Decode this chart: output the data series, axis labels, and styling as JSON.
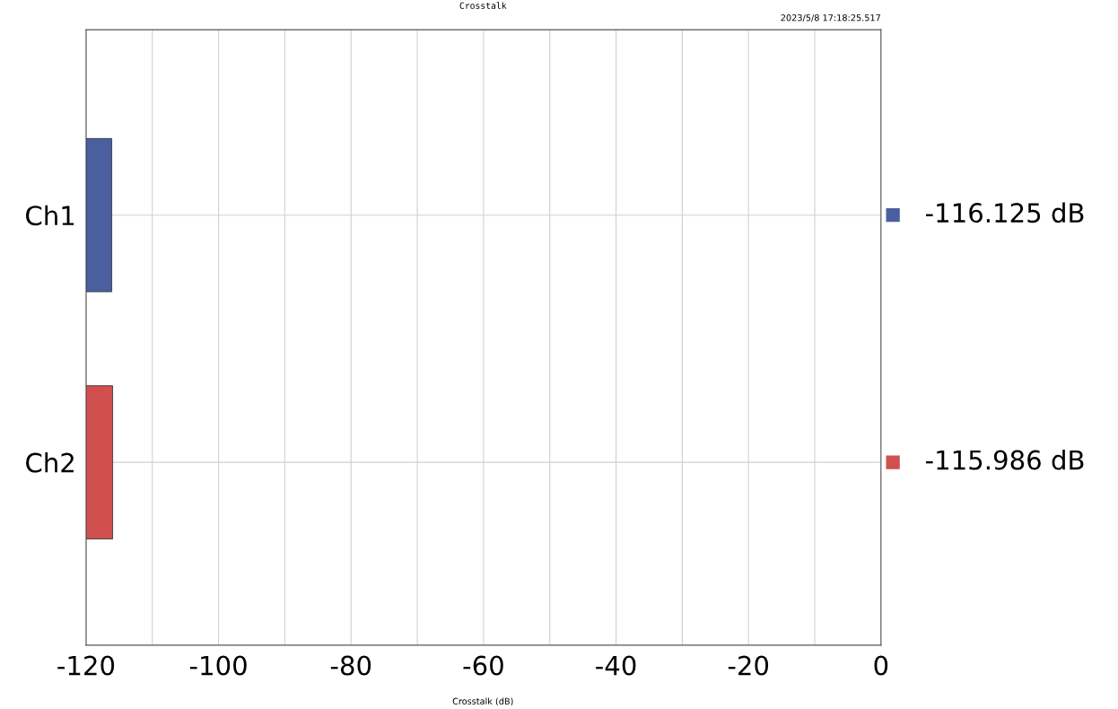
{
  "chart_data": {
    "type": "bar",
    "orientation": "horizontal",
    "title": "Crosstalk",
    "xlabel": "Crosstalk (dB)",
    "categories": [
      "Ch1",
      "Ch2"
    ],
    "base": [
      -120,
      -120
    ],
    "values": [
      3.875,
      4.014
    ],
    "colors": [
      "#4a5f9e",
      "#d0504f"
    ],
    "value_labels": [
      "-116.125 dB",
      "-115.986 dB"
    ],
    "xlim": [
      -120,
      0
    ],
    "xticks": [
      -120,
      {
        "value": -110,
        "label": null
      },
      -100,
      {
        "value": -90,
        "label": null
      },
      -80,
      {
        "value": -70,
        "label": null
      },
      -60,
      {
        "value": -50,
        "label": null
      },
      -40,
      {
        "value": -30,
        "label": null
      },
      -20,
      {
        "value": -10,
        "label": null
      },
      0
    ],
    "grid": true,
    "annotations": [
      "2023/5/8 17:18:25.517"
    ]
  }
}
